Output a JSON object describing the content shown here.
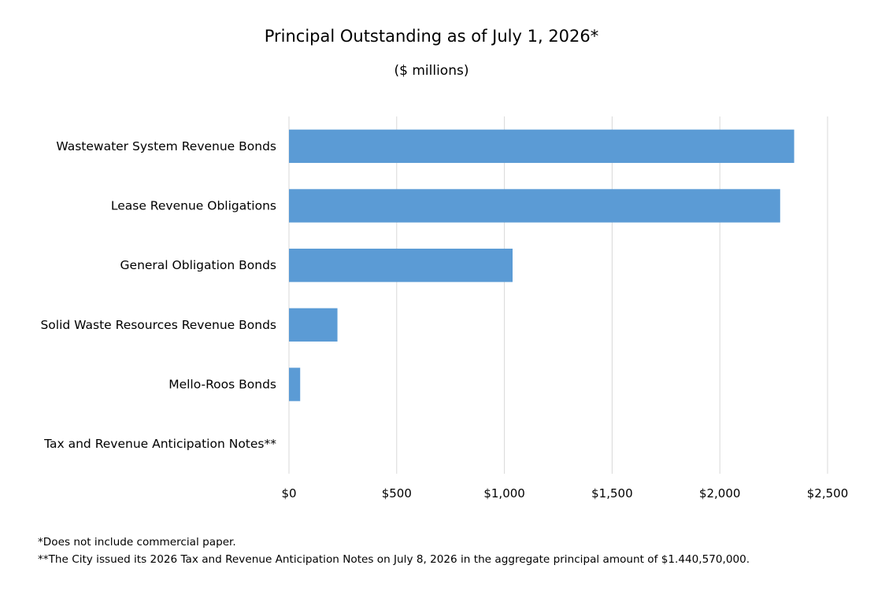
{
  "chart_data": {
    "type": "bar",
    "orientation": "horizontal",
    "title": "Principal Outstanding as of July 1, 2026*",
    "subtitle": "($ millions)",
    "categories": [
      "Wastewater System Revenue Bonds",
      "Lease Revenue Obligations",
      "General Obligation Bonds",
      "Solid Waste Resources Revenue Bonds",
      "Mello-Roos Bonds",
      "Tax and Revenue Anticipation Notes**"
    ],
    "values": [
      2345,
      2280,
      1038,
      225,
      52,
      0
    ],
    "xlim": [
      0,
      2500
    ],
    "xticks": [
      0,
      500,
      1000,
      1500,
      2000,
      2500
    ],
    "xtick_labels": [
      "$0",
      "$500",
      "$1,000",
      "$1,500",
      "$2,000",
      "$2,500"
    ],
    "grid": "vertical",
    "bar_color": "#5b9bd5",
    "grid_color": "#d9d9d9",
    "legend": "none"
  },
  "footnotes": [
    "*Does not include commercial paper.",
    "**The City issued its 2026 Tax and Revenue Anticipation Notes on July 8, 2026 in the aggregate principal amount of $1.440,570,000."
  ]
}
